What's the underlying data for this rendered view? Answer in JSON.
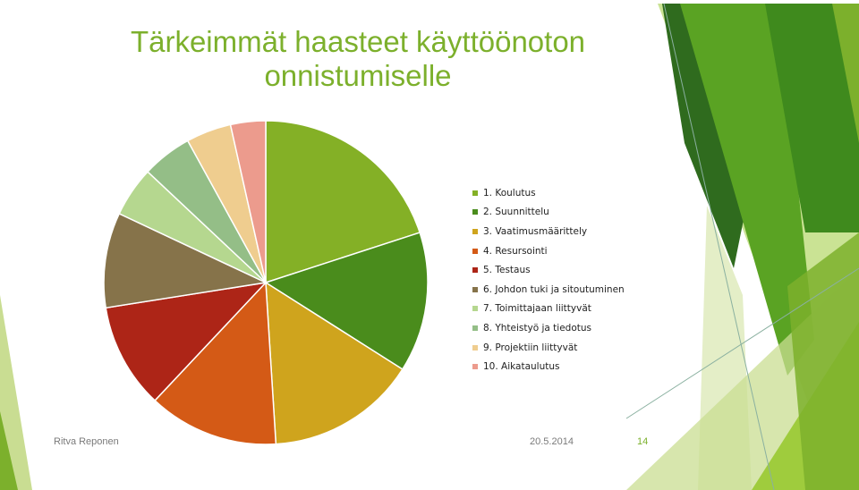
{
  "slide": {
    "title_line1": "Tärkeimmät haasteet käyttöönoton",
    "title_line2": "onnistumiselle",
    "footer_author": "Ritva Reponen",
    "footer_date": "20.5.2014",
    "page_number": "14"
  },
  "colors": {
    "accent": "#7cb02c",
    "deco": [
      "#2f6b1e",
      "#3f8a1d",
      "#5aa323",
      "#7cb02c",
      "#9fcc3d",
      "#c9dd92",
      "#e4eec7"
    ]
  },
  "chart_data": {
    "type": "pie",
    "start_angle": "12 o'clock, clockwise",
    "legend_position": "right",
    "slices": [
      {
        "label": "1. Koulutus",
        "value": 20.0,
        "color": "#84b026"
      },
      {
        "label": "2. Suunnittelu",
        "value": 14.0,
        "color": "#4a8c1c"
      },
      {
        "label": "3. Vaatimusmäärittely",
        "value": 15.0,
        "color": "#cfa41d"
      },
      {
        "label": "4. Resursointi",
        "value": 13.0,
        "color": "#d45a16"
      },
      {
        "label": "5. Testaus",
        "value": 10.5,
        "color": "#ad2517"
      },
      {
        "label": "6. Johdon tuki ja sitoutuminen",
        "value": 9.5,
        "color": "#86734a"
      },
      {
        "label": "7. Toimittajaan liittyvät",
        "value": 5.0,
        "color": "#b5d78f"
      },
      {
        "label": "8. Yhteistyö ja tiedotus",
        "value": 5.0,
        "color": "#94be87"
      },
      {
        "label": "9. Projektiin liittyvät",
        "value": 4.5,
        "color": "#efcd8f"
      },
      {
        "label": "10. Aikataulutus",
        "value": 3.5,
        "color": "#ec9b8d"
      }
    ]
  }
}
